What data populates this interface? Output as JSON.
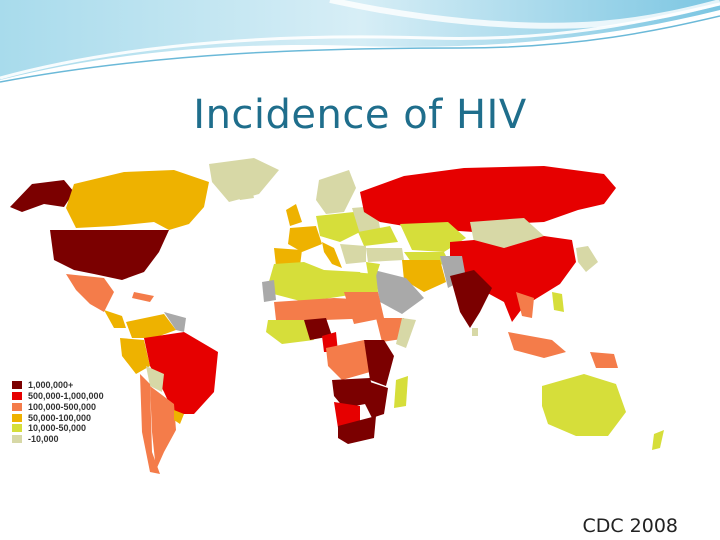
{
  "slide": {
    "title": "Incidence of HIV",
    "source": "CDC 2008"
  },
  "colors": {
    "banner_light": "#d9eef6",
    "banner_mid": "#8fcfe6",
    "title": "#1f6e8c",
    "ocean": "#ffffff",
    "no_data": "#a9a9a9"
  },
  "legend": [
    {
      "label": "1,000,000+",
      "color": "#7b0000"
    },
    {
      "label": "500,000-1,000,000",
      "color": "#e60000"
    },
    {
      "label": "100,000-500,000",
      "color": "#f47c4a"
    },
    {
      "label": "50,000-100,000",
      "color": "#eeb200"
    },
    {
      "label": "10,000-50,000",
      "color": "#d6de3a"
    },
    {
      "label": "-10,000",
      "color": "#d7d8a6"
    }
  ]
}
